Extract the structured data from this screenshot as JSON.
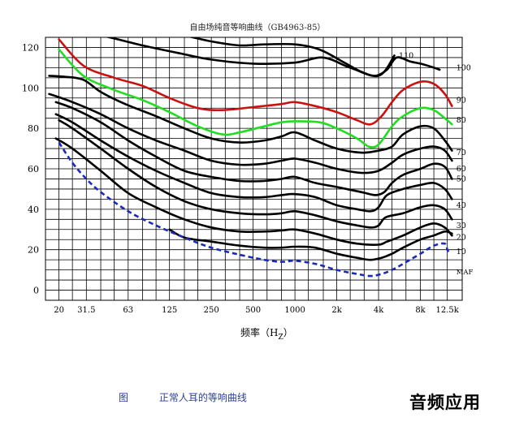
{
  "chart_data": {
    "type": "line",
    "title": "自由场纯音等响曲线（GB4963-85）",
    "xlabel": "频率（Hz）",
    "xlabel_parts": {
      "main": "频率（H",
      "sub": "Z",
      "end": "）"
    },
    "ylabel": "",
    "xscale": "log",
    "xlim_hz": [
      16,
      16000
    ],
    "ylim": [
      -5,
      125
    ],
    "x_ticks": [
      {
        "hz": 20,
        "label": "20"
      },
      {
        "hz": 31.5,
        "label": "31.5"
      },
      {
        "hz": 63,
        "label": "63"
      },
      {
        "hz": 125,
        "label": "125"
      },
      {
        "hz": 250,
        "label": "250"
      },
      {
        "hz": 500,
        "label": "500"
      },
      {
        "hz": 1000,
        "label": "1000"
      },
      {
        "hz": 2000,
        "label": "2k"
      },
      {
        "hz": 4000,
        "label": "4k"
      },
      {
        "hz": 8000,
        "label": "8k"
      },
      {
        "hz": 12500,
        "label": "12.5k"
      }
    ],
    "y_ticks": [
      0,
      20,
      40,
      60,
      80,
      100,
      120
    ],
    "grid": true,
    "series": [
      {
        "name": "110",
        "color": "#000000",
        "dash": false,
        "points": [
          [
            20,
            130
          ],
          [
            40,
            126
          ],
          [
            80,
            121
          ],
          [
            150,
            117
          ],
          [
            250,
            114
          ],
          [
            500,
            112
          ],
          [
            1000,
            112.5
          ],
          [
            1600,
            115
          ],
          [
            2500,
            110
          ],
          [
            4000,
            106
          ],
          [
            5200,
            116
          ]
        ]
      },
      {
        "name": "100",
        "color": "#000000",
        "dash": false,
        "points": [
          [
            160,
            126
          ],
          [
            250,
            123
          ],
          [
            400,
            121
          ],
          [
            600,
            121.5
          ],
          [
            1000,
            121.5
          ],
          [
            1500,
            119
          ],
          [
            2200,
            113
          ],
          [
            3000,
            108
          ],
          [
            3800,
            106
          ],
          [
            4600,
            109
          ],
          [
            5400,
            115
          ],
          [
            6800,
            113
          ],
          [
            8000,
            112
          ],
          [
            10000,
            110
          ],
          [
            11000,
            109
          ]
        ]
      },
      {
        "name": "90",
        "color": "#cc1111",
        "dash": false,
        "points": [
          [
            20,
            124
          ],
          [
            30,
            111
          ],
          [
            50,
            105
          ],
          [
            80,
            101
          ],
          [
            125,
            95
          ],
          [
            200,
            90
          ],
          [
            300,
            89
          ],
          [
            500,
            90.5
          ],
          [
            800,
            92
          ],
          [
            1000,
            93
          ],
          [
            1400,
            91
          ],
          [
            2000,
            88
          ],
          [
            2800,
            84
          ],
          [
            3500,
            82
          ],
          [
            4200,
            86
          ],
          [
            5000,
            93
          ],
          [
            6000,
            99
          ],
          [
            8000,
            103
          ],
          [
            10000,
            102
          ],
          [
            12000,
            97
          ],
          [
            13500,
            91
          ]
        ]
      },
      {
        "name": "80",
        "color": "#22dd22",
        "dash": false,
        "points": [
          [
            20,
            119
          ],
          [
            30,
            106
          ],
          [
            50,
            99
          ],
          [
            80,
            94
          ],
          [
            125,
            88
          ],
          [
            200,
            81
          ],
          [
            300,
            77
          ],
          [
            400,
            78
          ],
          [
            600,
            81
          ],
          [
            800,
            83
          ],
          [
            1000,
            83.5
          ],
          [
            1500,
            83
          ],
          [
            2000,
            80
          ],
          [
            2800,
            75
          ],
          [
            3400,
            71
          ],
          [
            4000,
            72
          ],
          [
            5000,
            81
          ],
          [
            6000,
            86
          ],
          [
            8000,
            90
          ],
          [
            10000,
            89
          ],
          [
            12000,
            85
          ],
          [
            13500,
            82
          ]
        ]
      },
      {
        "name": "70",
        "color": "#000000",
        "dash": false,
        "points": [
          [
            17,
            106
          ],
          [
            22,
            105.5
          ],
          [
            30,
            104
          ],
          [
            40,
            98
          ],
          [
            60,
            92
          ],
          [
            100,
            86
          ],
          [
            160,
            80
          ],
          [
            250,
            75
          ],
          [
            400,
            73
          ],
          [
            600,
            74
          ],
          [
            800,
            76
          ],
          [
            1000,
            78
          ],
          [
            1400,
            74
          ],
          [
            2000,
            70
          ],
          [
            3000,
            68
          ],
          [
            4000,
            69
          ],
          [
            5000,
            71
          ],
          [
            6000,
            77
          ],
          [
            8000,
            81
          ],
          [
            10000,
            80
          ],
          [
            12000,
            74
          ],
          [
            13500,
            69
          ]
        ]
      },
      {
        "name": "60",
        "color": "#000000",
        "dash": false,
        "points": [
          [
            17,
            97
          ],
          [
            25,
            93
          ],
          [
            40,
            87
          ],
          [
            63,
            80
          ],
          [
            100,
            74
          ],
          [
            160,
            69
          ],
          [
            250,
            64
          ],
          [
            400,
            62
          ],
          [
            600,
            62.5
          ],
          [
            800,
            64
          ],
          [
            1000,
            65
          ],
          [
            1400,
            63
          ],
          [
            2000,
            60
          ],
          [
            3000,
            58
          ],
          [
            4000,
            59
          ],
          [
            5000,
            63
          ],
          [
            6000,
            67
          ],
          [
            8000,
            70
          ],
          [
            10000,
            71
          ],
          [
            12000,
            69
          ],
          [
            13500,
            64
          ]
        ]
      },
      {
        "name": "50",
        "color": "#000000",
        "dash": false,
        "points": [
          [
            19,
            93
          ],
          [
            25,
            90
          ],
          [
            40,
            83
          ],
          [
            63,
            74
          ],
          [
            100,
            66
          ],
          [
            160,
            59
          ],
          [
            250,
            56
          ],
          [
            400,
            54
          ],
          [
            600,
            54
          ],
          [
            800,
            55
          ],
          [
            1000,
            56
          ],
          [
            1400,
            53
          ],
          [
            2000,
            51
          ],
          [
            3000,
            48.5
          ],
          [
            3800,
            47
          ],
          [
            4400,
            48.5
          ],
          [
            5000,
            53
          ],
          [
            6000,
            57
          ],
          [
            8000,
            60
          ],
          [
            10000,
            62.5
          ],
          [
            12000,
            61
          ],
          [
            13500,
            55
          ]
        ]
      },
      {
        "name": "40",
        "color": "#000000",
        "dash": false,
        "points": [
          [
            19,
            87
          ],
          [
            25,
            83
          ],
          [
            40,
            74
          ],
          [
            63,
            66
          ],
          [
            100,
            59
          ],
          [
            160,
            53
          ],
          [
            250,
            48
          ],
          [
            400,
            46
          ],
          [
            600,
            46
          ],
          [
            800,
            47
          ],
          [
            1000,
            47.5
          ],
          [
            1400,
            46
          ],
          [
            2000,
            42
          ],
          [
            2800,
            40
          ],
          [
            3500,
            39
          ],
          [
            4000,
            41
          ],
          [
            4600,
            47
          ],
          [
            6000,
            50
          ],
          [
            8000,
            52
          ],
          [
            10000,
            53
          ],
          [
            12000,
            50
          ],
          [
            13500,
            45
          ]
        ]
      },
      {
        "name": "30",
        "color": "#000000",
        "dash": false,
        "points": [
          [
            20,
            84
          ],
          [
            25,
            80
          ],
          [
            40,
            70
          ],
          [
            63,
            60
          ],
          [
            100,
            51
          ],
          [
            160,
            44
          ],
          [
            250,
            40
          ],
          [
            400,
            38
          ],
          [
            600,
            37.5
          ],
          [
            800,
            38
          ],
          [
            1000,
            39
          ],
          [
            1400,
            37
          ],
          [
            2000,
            34
          ],
          [
            2800,
            32
          ],
          [
            3500,
            31
          ],
          [
            4000,
            32
          ],
          [
            4500,
            36
          ],
          [
            6000,
            38
          ],
          [
            8000,
            41
          ],
          [
            10000,
            42
          ],
          [
            12000,
            40
          ],
          [
            13500,
            35
          ]
        ]
      },
      {
        "name": "20",
        "color": "#000000",
        "dash": false,
        "points": [
          [
            19,
            75
          ],
          [
            25,
            70
          ],
          [
            40,
            59
          ],
          [
            63,
            48
          ],
          [
            100,
            41
          ],
          [
            160,
            35
          ],
          [
            250,
            31
          ],
          [
            400,
            29
          ],
          [
            600,
            29
          ],
          [
            800,
            29.5
          ],
          [
            1000,
            30
          ],
          [
            1400,
            28
          ],
          [
            2000,
            25
          ],
          [
            2800,
            23
          ],
          [
            4000,
            22.5
          ],
          [
            4600,
            24
          ],
          [
            6000,
            27
          ],
          [
            8000,
            31
          ],
          [
            10000,
            33
          ],
          [
            12000,
            31
          ],
          [
            13500,
            27
          ]
        ]
      },
      {
        "name": "10",
        "color": "#000000",
        "dash": false,
        "points": [
          [
            125,
            30
          ],
          [
            160,
            26
          ],
          [
            250,
            24
          ],
          [
            400,
            22
          ],
          [
            600,
            21
          ],
          [
            800,
            21
          ],
          [
            1000,
            21.5
          ],
          [
            1400,
            21
          ],
          [
            2000,
            18
          ],
          [
            2800,
            16
          ],
          [
            3500,
            15
          ],
          [
            4200,
            16
          ],
          [
            5000,
            18
          ],
          [
            6000,
            21
          ],
          [
            8000,
            25
          ],
          [
            10000,
            27
          ],
          [
            12000,
            29
          ],
          [
            13500,
            28
          ]
        ]
      },
      {
        "name": "MAF",
        "color": "#1a2bb8",
        "dash": true,
        "points": [
          [
            20,
            73
          ],
          [
            25,
            63
          ],
          [
            31.5,
            55
          ],
          [
            40,
            48.5
          ],
          [
            63,
            39
          ],
          [
            100,
            32
          ],
          [
            160,
            26
          ],
          [
            250,
            21
          ],
          [
            400,
            17.5
          ],
          [
            600,
            15
          ],
          [
            800,
            14
          ],
          [
            1000,
            14.5
          ],
          [
            1400,
            13
          ],
          [
            2000,
            10
          ],
          [
            2800,
            8
          ],
          [
            3500,
            7
          ],
          [
            4200,
            8
          ],
          [
            5000,
            10
          ],
          [
            6000,
            13
          ],
          [
            8000,
            18
          ],
          [
            10000,
            22
          ],
          [
            12000,
            23
          ],
          [
            12500,
            20
          ],
          [
            13000,
            18
          ]
        ]
      }
    ],
    "curve_labels": [
      {
        "text": "110",
        "hz": 5600,
        "db": 116
      },
      {
        "text": "100",
        "hz": 14500,
        "db": 110
      },
      {
        "text": "90",
        "hz": 14500,
        "db": 94
      },
      {
        "text": "80",
        "hz": 14500,
        "db": 84
      },
      {
        "text": "70",
        "hz": 14500,
        "db": 68
      },
      {
        "text": "60",
        "hz": 14500,
        "db": 60
      },
      {
        "text": "50",
        "hz": 14500,
        "db": 55
      },
      {
        "text": "40",
        "hz": 14500,
        "db": 42
      },
      {
        "text": "30",
        "hz": 14500,
        "db": 32
      },
      {
        "text": "20",
        "hz": 14500,
        "db": 26
      },
      {
        "text": "10",
        "hz": 14500,
        "db": 19
      },
      {
        "text": "MAF",
        "hz": 14500,
        "db": 9
      }
    ]
  },
  "caption": {
    "figure": "图",
    "text": "正常人耳的等响曲线"
  },
  "watermark": "音频应用"
}
